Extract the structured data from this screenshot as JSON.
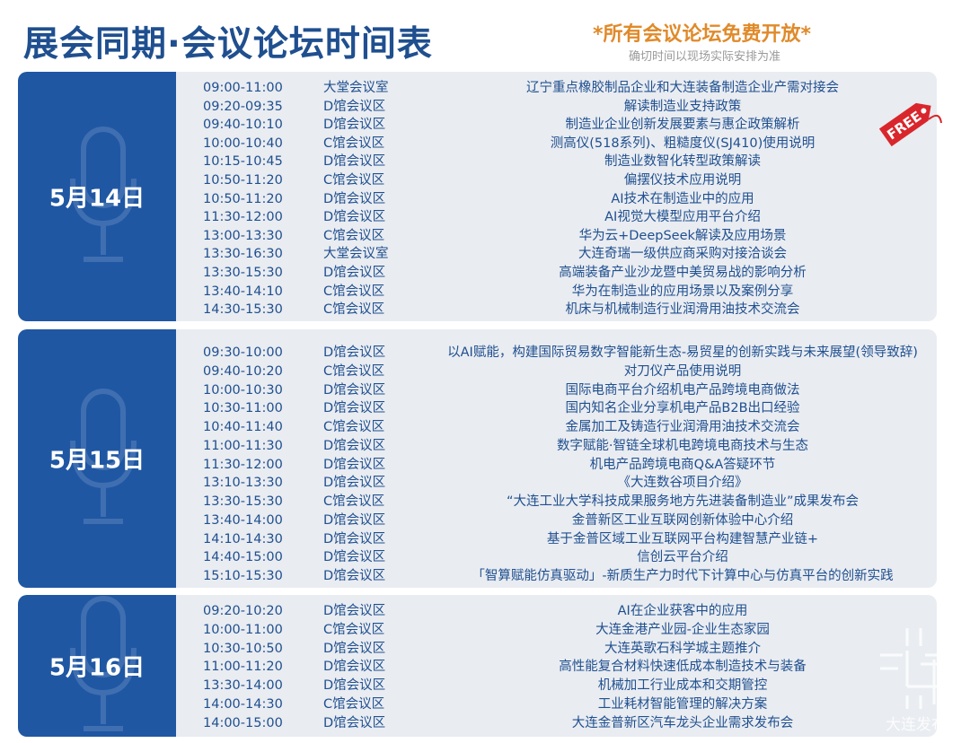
{
  "header": {
    "title": "展会同期·会议论坛时间表",
    "free_note": "*所有会议论坛免费开放*",
    "sub_note": "确切时间以现场实际安排为准"
  },
  "free_tag": "FREE",
  "watermark": "大连发布",
  "colors": {
    "primary": "#1f57a3",
    "title": "#1f4f8f",
    "accent": "#e08a2a",
    "free_tag": "#d9262c",
    "panel_bg": "#e9ecf1"
  },
  "days": [
    {
      "label": "5月14日",
      "rows": [
        [
          "09:00-11:00",
          "大堂会议室",
          "辽宁重点橡胶制品企业和大连装备制造企业产需对接会"
        ],
        [
          "09:20-09:35",
          "D馆会议区",
          "解读制造业支持政策"
        ],
        [
          "09:40-10:10",
          "D馆会议区",
          "制造业企业创新发展要素与惠企政策解析"
        ],
        [
          "10:00-10:40",
          "C馆会议区",
          "测高仪(518系列)、粗糙度仪(SJ410)使用说明"
        ],
        [
          "10:15-10:45",
          "D馆会议区",
          "制造业数智化转型政策解读"
        ],
        [
          "10:50-11:20",
          "C馆会议区",
          "偏摆仪技术应用说明"
        ],
        [
          "10:50-11:20",
          "D馆会议区",
          "AI技术在制造业中的应用"
        ],
        [
          "11:30-12:00",
          "D馆会议区",
          "AI视觉大模型应用平台介绍"
        ],
        [
          "13:00-13:30",
          "C馆会议区",
          "华为云+DeepSeek解读及应用场景"
        ],
        [
          "13:30-16:30",
          "大堂会议室",
          "大连奇瑞一级供应商采购对接洽谈会"
        ],
        [
          "13:30-15:30",
          "D馆会议区",
          "高端装备产业沙龙暨中美贸易战的影响分析"
        ],
        [
          "13:40-14:10",
          "C馆会议区",
          "华为在制造业的应用场景以及案例分享"
        ],
        [
          "14:30-15:30",
          "C馆会议区",
          "机床与机械制造行业润滑用油技术交流会"
        ]
      ]
    },
    {
      "label": "5月15日",
      "rows": [
        [
          "09:30-10:00",
          "D馆会议区",
          "以AI赋能，构建国际贸易数字智能新生态-易贸星的创新实践与未来展望(领导致辞)"
        ],
        [
          "09:40-10:20",
          "C馆会议区",
          "对刀仪产品使用说明"
        ],
        [
          "10:00-10:30",
          "D馆会议区",
          "国际电商平台介绍机电产品跨境电商做法"
        ],
        [
          "10:30-11:00",
          "D馆会议区",
          "国内知名企业分享机电产品B2B出口经验"
        ],
        [
          "10:40-11:40",
          "C馆会议区",
          "金属加工及铸造行业润滑用油技术交流会"
        ],
        [
          "11:00-11:30",
          "D馆会议区",
          "数字赋能·智链全球机电跨境电商技术与生态"
        ],
        [
          "11:30-12:00",
          "D馆会议区",
          "机电产品跨境电商Q&A答疑环节"
        ],
        [
          "13:10-13:30",
          "D馆会议区",
          "《大连数谷项目介绍》"
        ],
        [
          "13:30-15:30",
          "C馆会议区",
          "“大连工业大学科技成果服务地方先进装备制造业”成果发布会"
        ],
        [
          "13:40-14:00",
          "D馆会议区",
          "金普新区工业互联网创新体验中心介绍"
        ],
        [
          "14:10-14:30",
          "D馆会议区",
          "基于金普区域工业互联网平台构建智慧产业链+"
        ],
        [
          "14:40-15:00",
          "D馆会议区",
          "信创云平台介绍"
        ],
        [
          "15:10-15:30",
          "D馆会议区",
          "「智算赋能仿真驱动」-新质生产力时代下计算中心与仿真平台的创新实践"
        ]
      ]
    },
    {
      "label": "5月16日",
      "rows": [
        [
          "09:20-10:20",
          "D馆会议区",
          "AI在企业获客中的应用"
        ],
        [
          "10:00-11:00",
          "C馆会议区",
          "大连金港产业园-企业生态家园"
        ],
        [
          "10:30-10:50",
          "D馆会议区",
          "大连英歌石科学城主题推介"
        ],
        [
          "11:00-11:20",
          "D馆会议区",
          "高性能复合材料快速低成本制造技术与装备"
        ],
        [
          "13:30-14:00",
          "D馆会议区",
          "机械加工行业成本和交期管控"
        ],
        [
          "14:00-14:30",
          "C馆会议区",
          "工业耗材智能管理的解决方案"
        ],
        [
          "14:00-15:00",
          "D馆会议区",
          "大连金普新区汽车龙头企业需求发布会"
        ]
      ]
    }
  ]
}
